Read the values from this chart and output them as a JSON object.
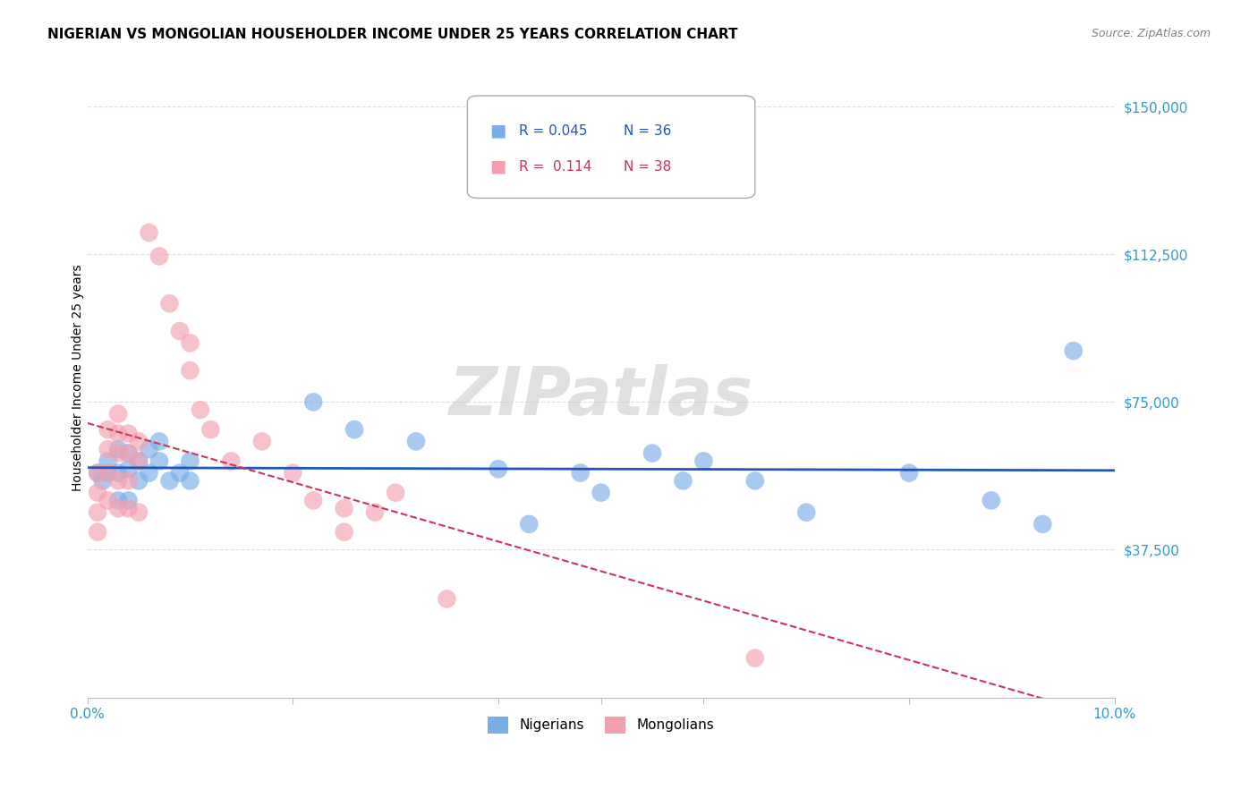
{
  "title": "NIGERIAN VS MONGOLIAN HOUSEHOLDER INCOME UNDER 25 YEARS CORRELATION CHART",
  "source": "Source: ZipAtlas.com",
  "ylabel": "Householder Income Under 25 years",
  "x_min": 0.0,
  "x_max": 0.1,
  "y_min": 0,
  "y_max": 162500,
  "y_ticks": [
    0,
    37500,
    75000,
    112500,
    150000
  ],
  "y_tick_labels": [
    "",
    "$37,500",
    "$75,000",
    "$112,500",
    "$150,000"
  ],
  "bg_color": "#ffffff",
  "grid_color": "#dddddd",
  "legend_r_nigerian": "0.045",
  "legend_n_nigerian": "36",
  "legend_r_mongolian": "0.114",
  "legend_n_mongolian": "38",
  "nigerian_color": "#7aaee8",
  "mongolian_color": "#f4a0b0",
  "nigerian_trend_color": "#2255bb",
  "mongolian_trend_color": "#cc3355",
  "nigerian_x": [
    0.001,
    0.0015,
    0.002,
    0.002,
    0.003,
    0.003,
    0.003,
    0.004,
    0.004,
    0.004,
    0.005,
    0.005,
    0.006,
    0.006,
    0.007,
    0.007,
    0.008,
    0.009,
    0.01,
    0.01,
    0.022,
    0.026,
    0.032,
    0.04,
    0.043,
    0.048,
    0.05,
    0.055,
    0.058,
    0.06,
    0.065,
    0.07,
    0.08,
    0.088,
    0.093,
    0.096
  ],
  "nigerian_y": [
    57000,
    55000,
    60000,
    57000,
    63000,
    57000,
    50000,
    62000,
    58000,
    50000,
    60000,
    55000,
    63000,
    57000,
    65000,
    60000,
    55000,
    57000,
    60000,
    55000,
    75000,
    68000,
    65000,
    58000,
    44000,
    57000,
    52000,
    62000,
    55000,
    60000,
    55000,
    47000,
    57000,
    50000,
    44000,
    88000
  ],
  "mongolian_x": [
    0.001,
    0.001,
    0.001,
    0.001,
    0.002,
    0.002,
    0.002,
    0.002,
    0.003,
    0.003,
    0.003,
    0.003,
    0.003,
    0.004,
    0.004,
    0.004,
    0.004,
    0.005,
    0.005,
    0.005,
    0.006,
    0.007,
    0.008,
    0.009,
    0.01,
    0.01,
    0.011,
    0.012,
    0.014,
    0.017,
    0.02,
    0.022,
    0.025,
    0.025,
    0.028,
    0.03,
    0.035,
    0.065
  ],
  "mongolian_y": [
    57000,
    52000,
    47000,
    42000,
    68000,
    63000,
    57000,
    50000,
    72000,
    67000,
    62000,
    55000,
    48000,
    67000,
    62000,
    55000,
    48000,
    65000,
    60000,
    47000,
    118000,
    112000,
    100000,
    93000,
    90000,
    83000,
    73000,
    68000,
    60000,
    65000,
    57000,
    50000,
    48000,
    42000,
    47000,
    52000,
    25000,
    10000
  ]
}
